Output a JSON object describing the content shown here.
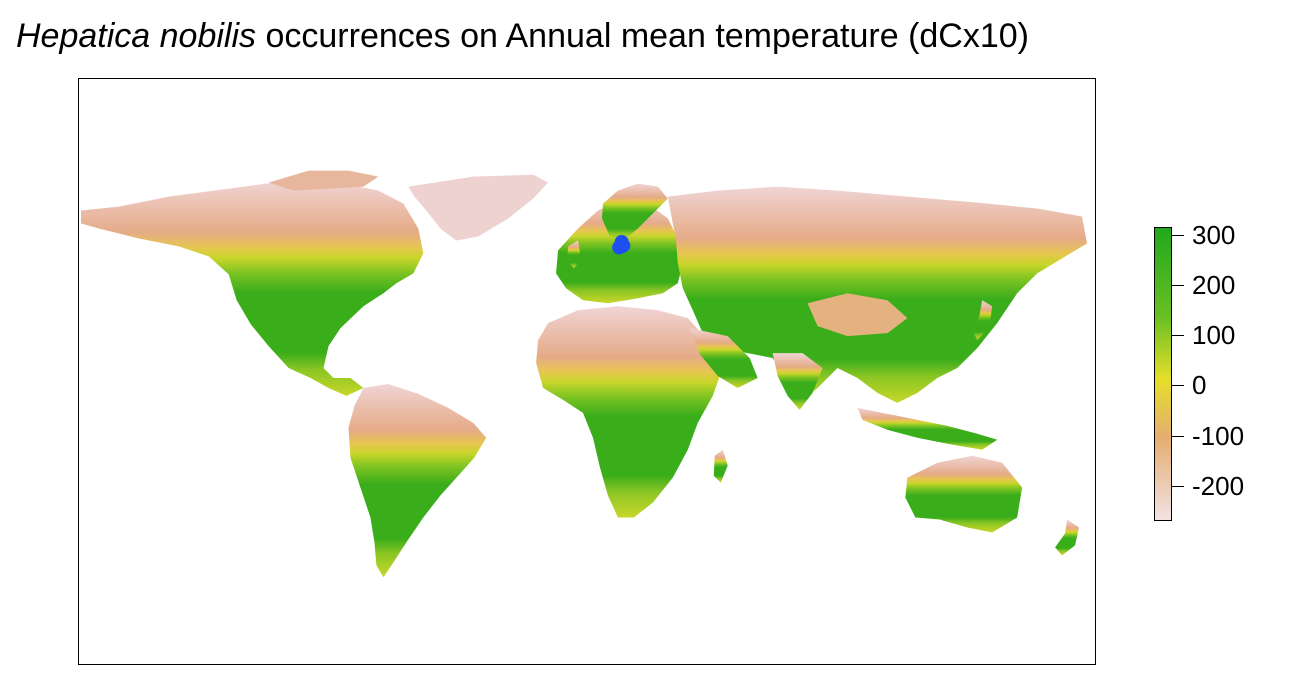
{
  "title": {
    "species": "Hepatica nobilis",
    "rest": " occurrences on Annual mean temperature (dCx10)"
  },
  "legend": {
    "ticks": [
      "300",
      "200",
      "100",
      "0",
      "-100",
      "-200"
    ],
    "colors": {
      "high": "#22a81e",
      "mid_high": "#67bf23",
      "zero": "#e6de2a",
      "low": "#e4ad72",
      "lowest": "#f2e3e3"
    }
  },
  "map": {
    "land_hot": "#3aad1b",
    "land_warm": "#7cc322",
    "land_mild": "#c8d62a",
    "land_cool": "#e6c64f",
    "land_cold": "#e5ab88",
    "land_ice": "#f0d4d4",
    "occurrence_color": "#1f4ff0"
  },
  "occurrences": [
    {
      "lon": 12.8,
      "lat": 58.9
    },
    {
      "lon": 13.4,
      "lat": 57.6
    },
    {
      "lon": 12.4,
      "lat": 57.2
    },
    {
      "lon": 11.9,
      "lat": 56.9
    },
    {
      "lon": 13.0,
      "lat": 57.4
    }
  ]
}
